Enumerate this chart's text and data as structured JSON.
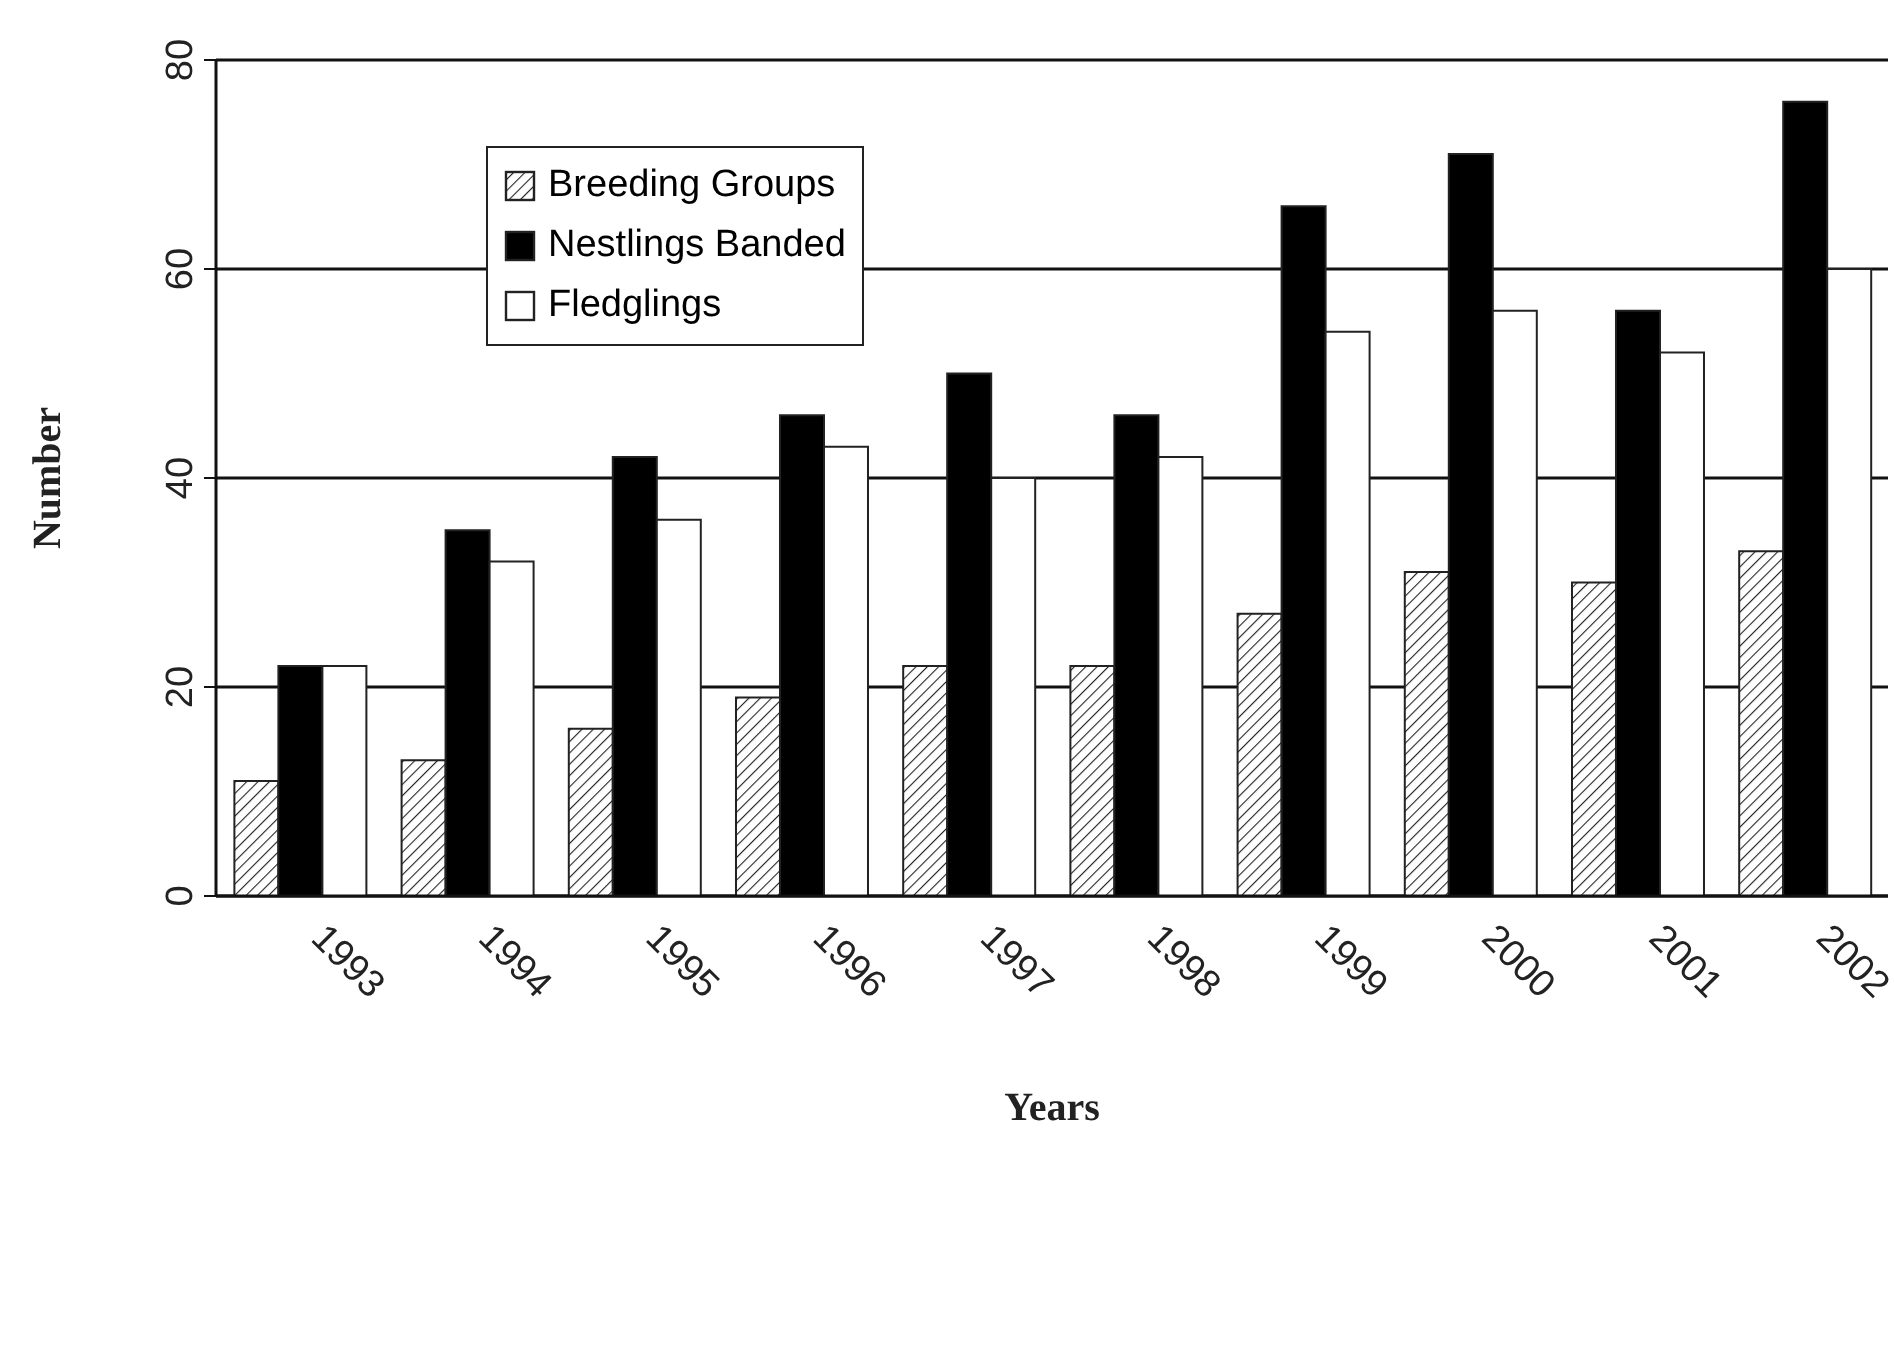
{
  "chart_data": {
    "type": "bar",
    "xlabel": "Years",
    "ylabel": "Number",
    "categories": [
      "1993",
      "1994",
      "1995",
      "1996",
      "1997",
      "1998",
      "1999",
      "2000",
      "2001",
      "2002"
    ],
    "series": [
      {
        "name": "Breeding Groups",
        "color": "#222222",
        "values": [
          11,
          13,
          16,
          19,
          22,
          22,
          27,
          31,
          30,
          33
        ]
      },
      {
        "name": "Nestlings Banded",
        "color": "#000000",
        "values": [
          22,
          35,
          42,
          46,
          50,
          46,
          66,
          71,
          56,
          76
        ]
      },
      {
        "name": "Fledglings",
        "color": "#ffffff",
        "values": [
          22,
          32,
          36,
          43,
          40,
          42,
          54,
          56,
          52,
          60
        ]
      }
    ],
    "ylim": [
      0,
      80
    ],
    "yticks": [
      0,
      20,
      40,
      60,
      80
    ],
    "grid": "y",
    "legend": "top left"
  }
}
